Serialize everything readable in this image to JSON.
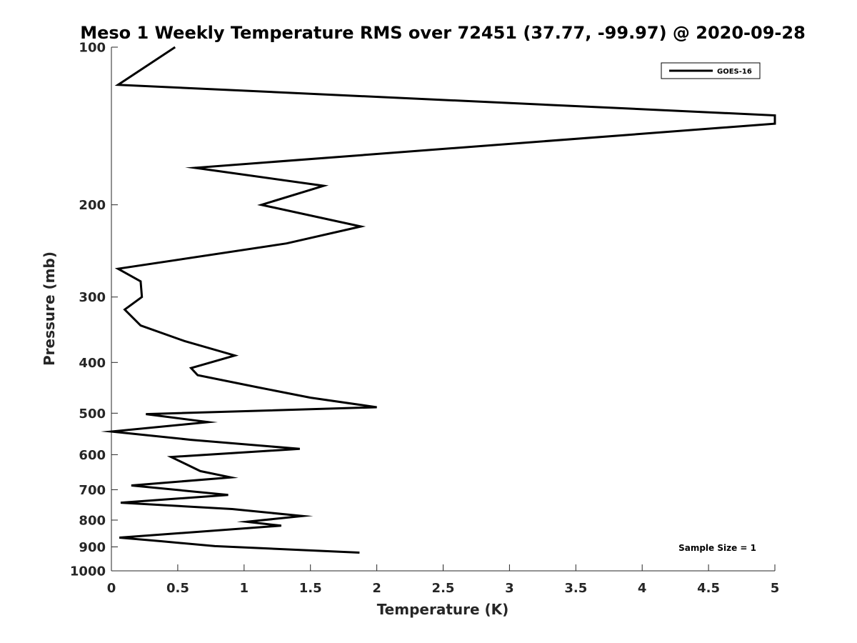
{
  "chart_data": {
    "type": "line",
    "title": "Meso 1 Weekly Temperature RMS over 72451 (37.77, -99.97) @ 2020-09-28",
    "xlabel": "Temperature (K)",
    "ylabel": "Pressure (mb)",
    "xlim": [
      0,
      5
    ],
    "ylim": [
      100,
      1000
    ],
    "y_scale": "log",
    "y_reversed": true,
    "x_ticks": [
      "0",
      "0.5",
      "1",
      "1.5",
      "2",
      "2.5",
      "3",
      "3.5",
      "4",
      "4.5",
      "5"
    ],
    "y_ticks": [
      "100",
      "200",
      "300",
      "400",
      "500",
      "600",
      "700",
      "800",
      "900",
      "1000"
    ],
    "grid": false,
    "legend": {
      "placement": "top-right",
      "entries": [
        "GOES-16"
      ]
    },
    "annotation": "Sample Size = 1",
    "series": [
      {
        "name": "GOES-16",
        "color": "#000000",
        "points": [
          [
            0.48,
            100
          ],
          [
            0.05,
            118
          ],
          [
            5.0,
            135
          ],
          [
            5.0,
            140
          ],
          [
            0.63,
            170
          ],
          [
            1.6,
            184
          ],
          [
            1.13,
            200
          ],
          [
            1.88,
            220
          ],
          [
            1.32,
            237
          ],
          [
            0.05,
            265
          ],
          [
            0.22,
            280
          ],
          [
            0.23,
            300
          ],
          [
            0.1,
            317
          ],
          [
            0.22,
            340
          ],
          [
            0.55,
            364
          ],
          [
            0.93,
            388
          ],
          [
            0.6,
            410
          ],
          [
            0.65,
            423
          ],
          [
            1.1,
            446
          ],
          [
            1.5,
            467
          ],
          [
            2.0,
            487
          ],
          [
            0.26,
            502
          ],
          [
            0.73,
            520
          ],
          [
            0.0,
            542
          ],
          [
            0.6,
            562
          ],
          [
            1.42,
            585
          ],
          [
            0.45,
            606
          ],
          [
            0.57,
            627
          ],
          [
            0.67,
            645
          ],
          [
            0.9,
            663
          ],
          [
            0.15,
            687
          ],
          [
            0.88,
            716
          ],
          [
            0.07,
            741
          ],
          [
            0.91,
            762
          ],
          [
            1.44,
            786
          ],
          [
            1.02,
            806
          ],
          [
            1.28,
            820
          ],
          [
            0.06,
            864
          ],
          [
            0.38,
            878
          ],
          [
            0.78,
            897
          ],
          [
            1.87,
            923
          ]
        ]
      }
    ]
  }
}
